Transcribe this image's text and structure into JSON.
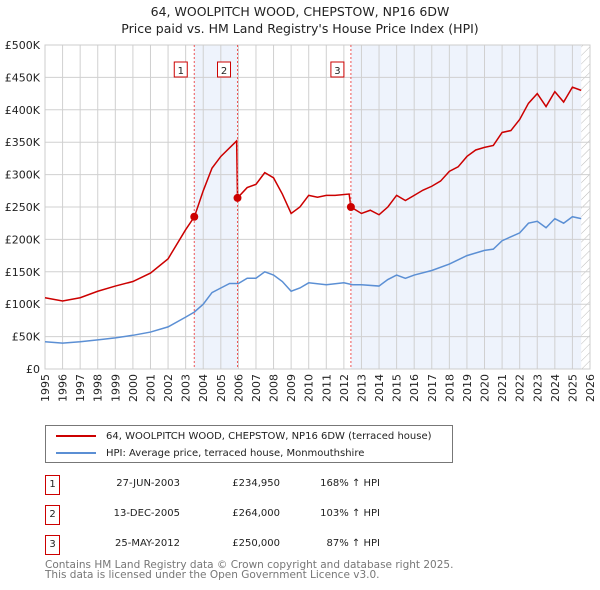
{
  "chart_data": {
    "type": "line",
    "title": "64, WOOLPITCH WOOD, CHEPSTOW, NP16 6DW",
    "subtitle": "Price paid vs. HM Land Registry's House Price Index (HPI)",
    "xlim": [
      1995,
      2026
    ],
    "ylim": [
      0,
      500000
    ],
    "yticks": [
      0,
      50000,
      100000,
      150000,
      200000,
      250000,
      300000,
      350000,
      400000,
      450000,
      500000
    ],
    "ytick_labels": [
      "£0",
      "£50K",
      "£100K",
      "£150K",
      "£200K",
      "£250K",
      "£300K",
      "£350K",
      "£400K",
      "£450K",
      "£500K"
    ],
    "xticks": [
      1995,
      1996,
      1997,
      1998,
      1999,
      2000,
      2001,
      2002,
      2003,
      2004,
      2005,
      2006,
      2007,
      2008,
      2009,
      2010,
      2011,
      2012,
      2013,
      2014,
      2015,
      2016,
      2017,
      2018,
      2019,
      2020,
      2021,
      2022,
      2023,
      2024,
      2025,
      2026
    ],
    "grid": true,
    "series": [
      {
        "name": "64, WOOLPITCH WOOD, CHEPSTOW, NP16 6DW (terraced house)",
        "color": "#cc0000",
        "x": [
          1995,
          1996,
          1997,
          1998,
          1999,
          2000,
          2001,
          2002,
          2003,
          2003.5,
          2004,
          2004.5,
          2005,
          2005.9,
          2005.95,
          2006.5,
          2007,
          2007.5,
          2008,
          2008.5,
          2009,
          2009.5,
          2010,
          2010.5,
          2011,
          2011.5,
          2012.3,
          2012.4,
          2013,
          2013.5,
          2014,
          2014.5,
          2015,
          2015.5,
          2016,
          2016.5,
          2017,
          2017.5,
          2018,
          2018.5,
          2019,
          2019.5,
          2020,
          2020.5,
          2021,
          2021.5,
          2022,
          2022.5,
          2023,
          2023.5,
          2024,
          2024.5,
          2025,
          2025.5
        ],
        "y": [
          110000,
          105000,
          110000,
          120000,
          128000,
          135000,
          148000,
          170000,
          215000,
          235000,
          275000,
          310000,
          328000,
          352000,
          264000,
          280000,
          285000,
          303000,
          295000,
          270000,
          240000,
          250000,
          268000,
          265000,
          268000,
          268000,
          270000,
          250000,
          240000,
          245000,
          238000,
          250000,
          268000,
          260000,
          268000,
          276000,
          282000,
          290000,
          305000,
          312000,
          328000,
          338000,
          342000,
          345000,
          365000,
          368000,
          385000,
          410000,
          425000,
          405000,
          428000,
          412000,
          435000,
          430000
        ]
      },
      {
        "name": "HPI: Average price, terraced house, Monmouthshire",
        "color": "#5b8fd4",
        "x": [
          1995,
          1996,
          1997,
          1998,
          1999,
          2000,
          2001,
          2002,
          2003,
          2003.5,
          2004,
          2004.5,
          2005,
          2005.5,
          2006,
          2006.5,
          2007,
          2007.5,
          2008,
          2008.5,
          2009,
          2009.5,
          2010,
          2011,
          2012,
          2012.5,
          2013,
          2014,
          2014.5,
          2015,
          2015.5,
          2016,
          2017,
          2018,
          2019,
          2020,
          2020.5,
          2021,
          2022,
          2022.5,
          2023,
          2023.5,
          2024,
          2024.5,
          2025,
          2025.5
        ],
        "y": [
          42000,
          40000,
          42000,
          45000,
          48000,
          52000,
          57000,
          65000,
          80000,
          88000,
          100000,
          118000,
          125000,
          132000,
          132000,
          140000,
          140000,
          150000,
          145000,
          135000,
          120000,
          125000,
          133000,
          130000,
          133000,
          130000,
          130000,
          128000,
          138000,
          145000,
          140000,
          145000,
          152000,
          162000,
          175000,
          183000,
          185000,
          198000,
          210000,
          225000,
          228000,
          218000,
          232000,
          225000,
          235000,
          232000
        ]
      }
    ],
    "sales": [
      {
        "num": "1",
        "x": 2003.49,
        "price": 234950,
        "date": "27-JUN-2003",
        "price_label": "£234,950",
        "hpi": "168% ↑ HPI"
      },
      {
        "num": "2",
        "x": 2005.95,
        "price": 264000,
        "date": "13-DEC-2005",
        "price_label": "£264,000",
        "hpi": "103% ↑ HPI"
      },
      {
        "num": "3",
        "x": 2012.4,
        "price": 250000,
        "date": "25-MAY-2012",
        "price_label": "£250,000",
        "hpi": "87% ↑ HPI"
      }
    ],
    "shaded_ranges": [
      [
        2003.49,
        2005.95
      ],
      [
        2012.4,
        2025.5
      ]
    ],
    "hatched_from": 2025.5
  },
  "footer": {
    "line1": "Contains HM Land Registry data © Crown copyright and database right 2025.",
    "line2": "This data is licensed under the Open Government Licence v3.0."
  }
}
